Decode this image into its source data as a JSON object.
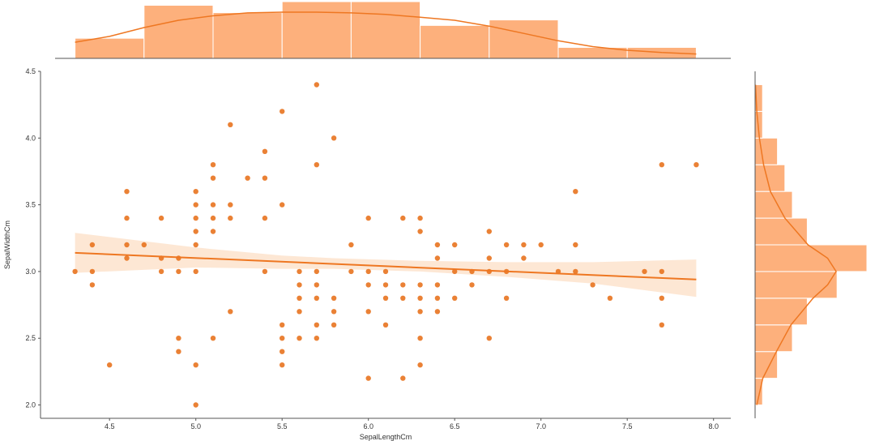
{
  "chart_data": {
    "type": "scatter",
    "subtype": "jointplot with regression line, marginal histograms and KDE",
    "xlabel": "SepalLengthCm",
    "ylabel": "SepalWidthCm",
    "xlim": [
      4.1,
      8.1
    ],
    "ylim": [
      1.9,
      4.5
    ],
    "xticks": [
      "4.5",
      "5.0",
      "5.5",
      "6.0",
      "6.5",
      "7.0",
      "7.5",
      "8.0"
    ],
    "yticks": [
      "2.0",
      "2.5",
      "3.0",
      "3.5",
      "4.0",
      "4.5"
    ],
    "grid": false,
    "colors": {
      "points": "#e8731f",
      "regression_line": "#ee7722",
      "confidence_band": "#fde3cd",
      "histogram_fill": "#fdb07c",
      "histogram_edge": "#ffffff",
      "kde_line": "#ee7722",
      "axis": "#555555"
    },
    "points": [
      [
        4.3,
        3.0
      ],
      [
        4.4,
        3.2
      ],
      [
        4.4,
        3.0
      ],
      [
        4.4,
        2.9
      ],
      [
        4.5,
        2.3
      ],
      [
        4.6,
        3.6
      ],
      [
        4.6,
        3.4
      ],
      [
        4.6,
        3.2
      ],
      [
        4.6,
        3.1
      ],
      [
        4.7,
        3.2
      ],
      [
        4.8,
        3.4
      ],
      [
        4.8,
        3.1
      ],
      [
        4.8,
        3.0
      ],
      [
        4.9,
        3.1
      ],
      [
        4.9,
        3.0
      ],
      [
        4.9,
        2.5
      ],
      [
        4.9,
        2.4
      ],
      [
        5.0,
        3.6
      ],
      [
        5.0,
        3.5
      ],
      [
        5.0,
        3.4
      ],
      [
        5.0,
        3.3
      ],
      [
        5.0,
        3.2
      ],
      [
        5.0,
        3.0
      ],
      [
        5.0,
        2.3
      ],
      [
        5.0,
        2.0
      ],
      [
        5.1,
        3.8
      ],
      [
        5.1,
        3.7
      ],
      [
        5.1,
        3.5
      ],
      [
        5.1,
        3.4
      ],
      [
        5.1,
        3.3
      ],
      [
        5.1,
        2.5
      ],
      [
        5.2,
        4.1
      ],
      [
        5.2,
        3.5
      ],
      [
        5.2,
        3.4
      ],
      [
        5.2,
        2.7
      ],
      [
        5.3,
        3.7
      ],
      [
        5.4,
        3.9
      ],
      [
        5.4,
        3.7
      ],
      [
        5.4,
        3.4
      ],
      [
        5.4,
        3.0
      ],
      [
        5.5,
        4.2
      ],
      [
        5.5,
        3.5
      ],
      [
        5.5,
        2.6
      ],
      [
        5.5,
        2.5
      ],
      [
        5.5,
        2.4
      ],
      [
        5.5,
        2.3
      ],
      [
        5.6,
        3.0
      ],
      [
        5.6,
        2.9
      ],
      [
        5.6,
        2.8
      ],
      [
        5.6,
        2.7
      ],
      [
        5.6,
        2.5
      ],
      [
        5.7,
        4.4
      ],
      [
        5.7,
        3.8
      ],
      [
        5.7,
        3.0
      ],
      [
        5.7,
        2.9
      ],
      [
        5.7,
        2.8
      ],
      [
        5.7,
        2.6
      ],
      [
        5.7,
        2.5
      ],
      [
        5.8,
        4.0
      ],
      [
        5.8,
        2.8
      ],
      [
        5.8,
        2.7
      ],
      [
        5.8,
        2.6
      ],
      [
        5.9,
        3.2
      ],
      [
        5.9,
        3.0
      ],
      [
        6.0,
        3.4
      ],
      [
        6.0,
        3.0
      ],
      [
        6.0,
        2.9
      ],
      [
        6.0,
        2.7
      ],
      [
        6.0,
        2.2
      ],
      [
        6.1,
        3.0
      ],
      [
        6.1,
        2.9
      ],
      [
        6.1,
        2.8
      ],
      [
        6.1,
        2.6
      ],
      [
        6.2,
        3.4
      ],
      [
        6.2,
        2.9
      ],
      [
        6.2,
        2.8
      ],
      [
        6.2,
        2.2
      ],
      [
        6.3,
        3.4
      ],
      [
        6.3,
        3.3
      ],
      [
        6.3,
        2.9
      ],
      [
        6.3,
        2.8
      ],
      [
        6.3,
        2.7
      ],
      [
        6.3,
        2.5
      ],
      [
        6.3,
        2.3
      ],
      [
        6.4,
        3.2
      ],
      [
        6.4,
        3.1
      ],
      [
        6.4,
        2.9
      ],
      [
        6.4,
        2.8
      ],
      [
        6.4,
        2.7
      ],
      [
        6.5,
        3.2
      ],
      [
        6.5,
        3.0
      ],
      [
        6.5,
        2.8
      ],
      [
        6.6,
        3.0
      ],
      [
        6.6,
        2.9
      ],
      [
        6.7,
        3.3
      ],
      [
        6.7,
        3.1
      ],
      [
        6.7,
        3.0
      ],
      [
        6.7,
        2.5
      ],
      [
        6.8,
        3.2
      ],
      [
        6.8,
        3.0
      ],
      [
        6.8,
        2.8
      ],
      [
        6.9,
        3.2
      ],
      [
        6.9,
        3.1
      ],
      [
        7.0,
        3.2
      ],
      [
        7.1,
        3.0
      ],
      [
        7.2,
        3.6
      ],
      [
        7.2,
        3.2
      ],
      [
        7.2,
        3.0
      ],
      [
        7.3,
        2.9
      ],
      [
        7.4,
        2.8
      ],
      [
        7.6,
        3.0
      ],
      [
        7.7,
        3.8
      ],
      [
        7.7,
        3.0
      ],
      [
        7.7,
        2.8
      ],
      [
        7.7,
        2.6
      ],
      [
        7.9,
        3.8
      ]
    ],
    "regression": {
      "x_start": 4.3,
      "y_start": 3.14,
      "x_end": 7.9,
      "y_end": 2.94
    },
    "confidence_band": [
      [
        4.3,
        2.99,
        3.29
      ],
      [
        5.0,
        3.03,
        3.18
      ],
      [
        5.5,
        3.02,
        3.12
      ],
      [
        5.8,
        3.02,
        3.1
      ],
      [
        6.3,
        3.0,
        3.08
      ],
      [
        6.8,
        2.96,
        3.07
      ],
      [
        7.3,
        2.91,
        3.07
      ],
      [
        7.9,
        2.81,
        3.09
      ]
    ],
    "x_histogram": {
      "bin_edges": [
        4.3,
        4.7,
        5.1,
        5.5,
        5.9,
        6.3,
        6.7,
        7.1,
        7.5,
        7.9
      ],
      "counts": [
        11,
        29,
        25,
        31,
        31,
        18,
        21,
        6,
        6
      ]
    },
    "x_kde": [
      [
        4.3,
        0.11
      ],
      [
        4.5,
        0.15
      ],
      [
        4.7,
        0.21
      ],
      [
        4.9,
        0.26
      ],
      [
        5.1,
        0.29
      ],
      [
        5.3,
        0.31
      ],
      [
        5.5,
        0.315
      ],
      [
        5.7,
        0.315
      ],
      [
        5.9,
        0.31
      ],
      [
        6.1,
        0.3
      ],
      [
        6.3,
        0.28
      ],
      [
        6.5,
        0.26
      ],
      [
        6.7,
        0.22
      ],
      [
        6.9,
        0.17
      ],
      [
        7.1,
        0.12
      ],
      [
        7.3,
        0.08
      ],
      [
        7.5,
        0.055
      ],
      [
        7.7,
        0.04
      ],
      [
        7.9,
        0.03
      ]
    ],
    "y_histogram": {
      "bin_edges": [
        2.0,
        2.2,
        2.4,
        2.6,
        2.8,
        3.0,
        3.2,
        3.4,
        3.6,
        3.8,
        4.0,
        4.2,
        4.4
      ],
      "counts": [
        1,
        3,
        5,
        7,
        11,
        15,
        7,
        5,
        4,
        3,
        1,
        1
      ]
    },
    "y_kde": [
      [
        2.0,
        0.02
      ],
      [
        2.2,
        0.09
      ],
      [
        2.4,
        0.25
      ],
      [
        2.6,
        0.42
      ],
      [
        2.8,
        0.68
      ],
      [
        2.9,
        0.85
      ],
      [
        3.0,
        0.95
      ],
      [
        3.1,
        0.85
      ],
      [
        3.2,
        0.62
      ],
      [
        3.4,
        0.35
      ],
      [
        3.6,
        0.18
      ],
      [
        3.8,
        0.1
      ],
      [
        4.0,
        0.05
      ],
      [
        4.2,
        0.02
      ],
      [
        4.4,
        0.005
      ]
    ]
  }
}
